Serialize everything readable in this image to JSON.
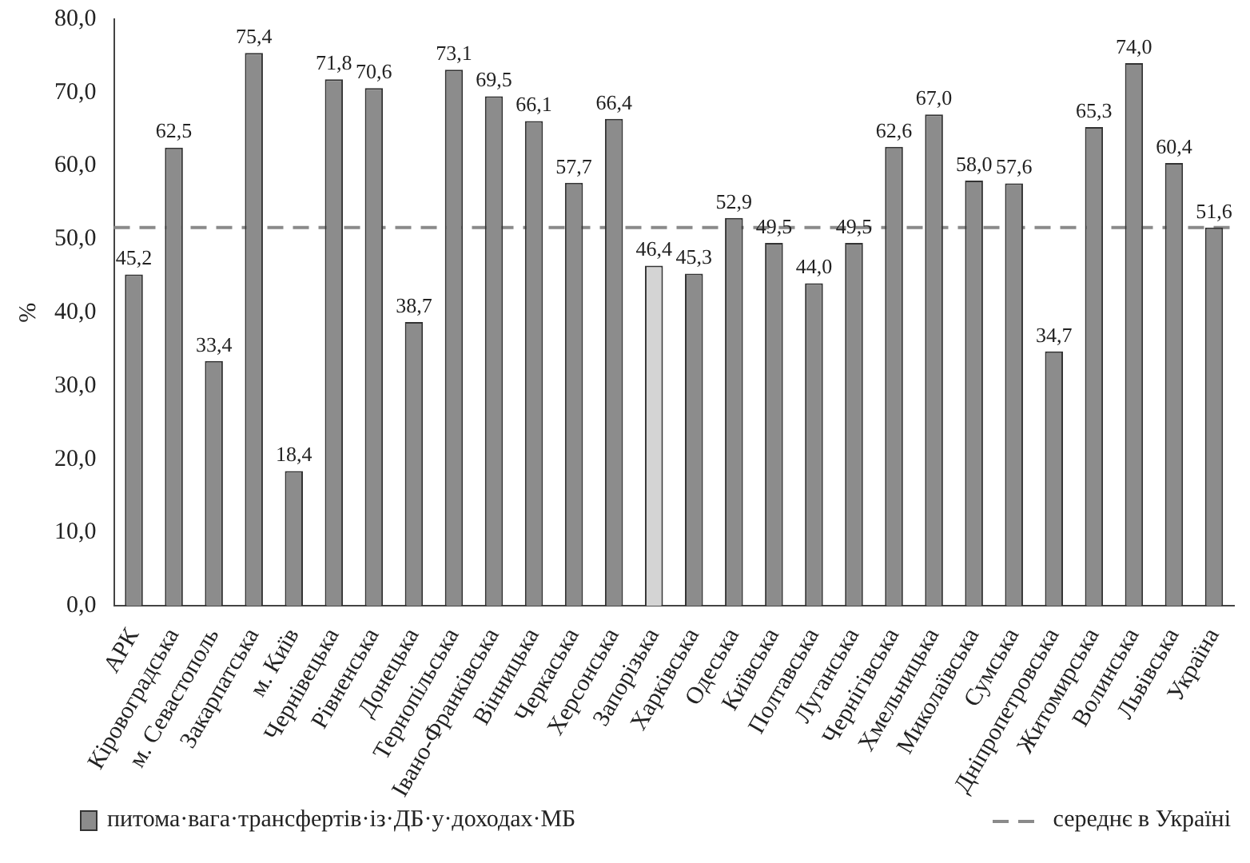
{
  "chart_data": {
    "type": "bar",
    "ylabel": "%",
    "categories": [
      "АРК",
      "Кіровоградська",
      "м. Севастополь",
      "Закарпатська",
      "м. Київ",
      "Чернівецька",
      "Рівненська",
      "Донецька",
      "Тернопільська",
      "Івано-Франківська",
      "Вінницька",
      "Черкаська",
      "Херсонська",
      "Запорізька",
      "Харківська",
      "Одеська",
      "Київська",
      "Полтавська",
      "Луганська",
      "Чернігівська",
      "Хмельницька",
      "Миколаївська",
      "Сумська",
      "Дніпропетровська",
      "Житомирська",
      "Волинська",
      "Львівська",
      "Україна"
    ],
    "series": [
      {
        "name": "питома·вага·трансфертів·із·ДБ·у·доходах·МБ",
        "color": "#8c8c8c",
        "colors": [
          "#8c8c8c",
          "#8c8c8c",
          "#8c8c8c",
          "#8c8c8c",
          "#8c8c8c",
          "#8c8c8c",
          "#8c8c8c",
          "#8c8c8c",
          "#8c8c8c",
          "#8c8c8c",
          "#8c8c8c",
          "#8c8c8c",
          "#8c8c8c",
          "#d4d4d4",
          "#8c8c8c",
          "#8c8c8c",
          "#8c8c8c",
          "#8c8c8c",
          "#8c8c8c",
          "#8c8c8c",
          "#8c8c8c",
          "#8c8c8c",
          "#8c8c8c",
          "#8c8c8c",
          "#8c8c8c",
          "#8c8c8c",
          "#8c8c8c",
          "#8c8c8c"
        ],
        "values": [
          45.2,
          62.5,
          33.4,
          75.4,
          18.4,
          71.8,
          70.6,
          38.7,
          73.1,
          69.5,
          66.1,
          57.7,
          66.4,
          46.4,
          45.3,
          52.9,
          49.5,
          44.0,
          49.5,
          62.6,
          67.0,
          58.0,
          57.6,
          34.7,
          65.3,
          74.0,
          60.4,
          51.6
        ],
        "value_labels": [
          "45,2",
          "62,5",
          "33,4",
          "75,4",
          "18,4",
          "71,8",
          "70,6",
          "38,7",
          "73,1",
          "69,5",
          "66,1",
          "57,7",
          "66,4",
          "46,4",
          "45,3",
          "52,9",
          "49,5",
          "44,0",
          "49,5",
          "62,6",
          "67,0",
          "58,0",
          "57,6",
          "34,7",
          "65,3",
          "74,0",
          "60,4",
          "51,6"
        ]
      }
    ],
    "ylim": [
      0,
      80
    ],
    "yticks": [
      {
        "value": 0,
        "label": "0,0"
      },
      {
        "value": 10,
        "label": "10,0"
      },
      {
        "value": 20,
        "label": "20,0"
      },
      {
        "value": 30,
        "label": "30,0"
      },
      {
        "value": 40,
        "label": "40,0"
      },
      {
        "value": 50,
        "label": "50,0"
      },
      {
        "value": 60,
        "label": "60,0"
      },
      {
        "value": 70,
        "label": "70,0"
      },
      {
        "value": 80,
        "label": "80,0"
      }
    ],
    "ref_lines": [
      {
        "axis": "y",
        "value": 51.6,
        "label": "середнє в Україні",
        "color": "#8a8a8a",
        "line_style": "dashed"
      }
    ],
    "grid": false,
    "legend": "bottom"
  }
}
